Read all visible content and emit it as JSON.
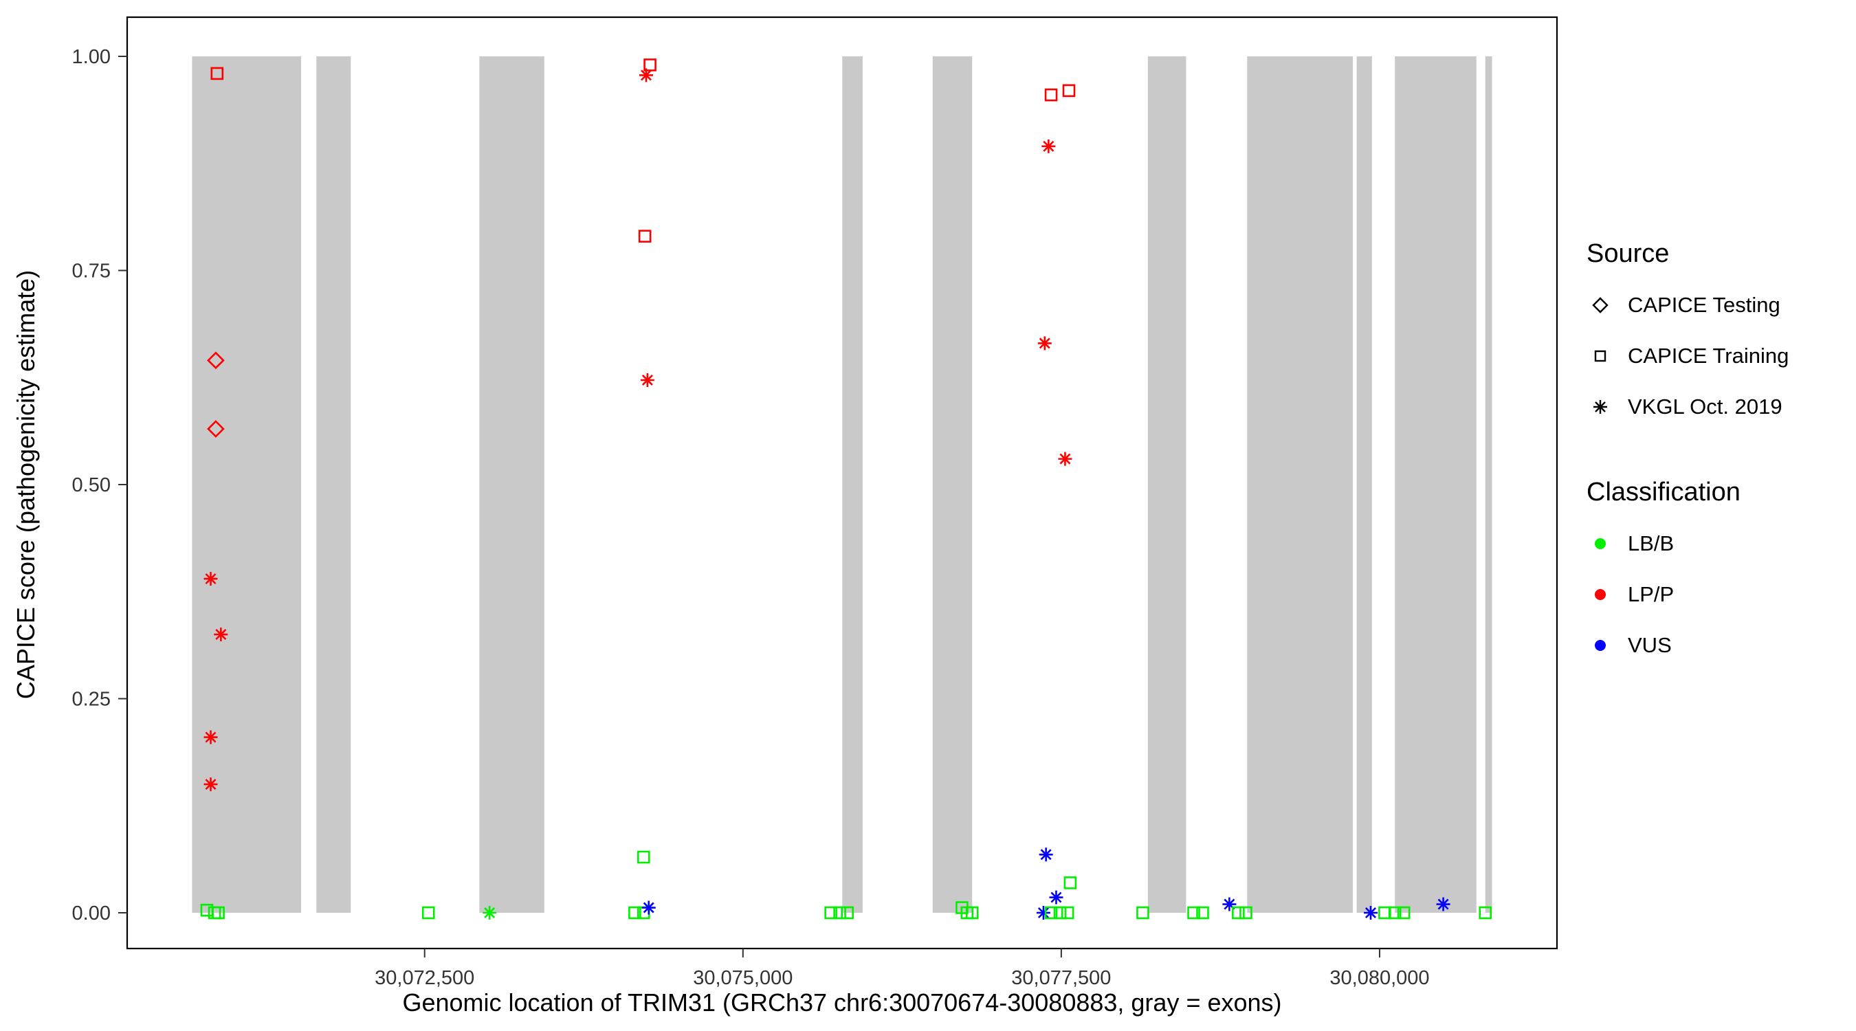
{
  "figure": {
    "background": "#ffffff"
  },
  "chart_data": {
    "type": "scatter",
    "title": "",
    "xlabel": "Genomic location of TRIM31 (GRCh37 chr6:30070674-30080883, gray = exons)",
    "ylabel": "CAPICE score (pathogenicity estimate)",
    "xlim": [
      30070164,
      30081393
    ],
    "ylim": [
      -0.042,
      1.046
    ],
    "grid": "off",
    "panel_border_color": "#000000",
    "tick_label_color": "#333333",
    "exon_color": "#C9C9C9",
    "x_ticks": [
      {
        "value": 30072500,
        "label": "30,072,500"
      },
      {
        "value": 30075000,
        "label": "30,075,000"
      },
      {
        "value": 30077500,
        "label": "30,077,500"
      },
      {
        "value": 30080000,
        "label": "30,080,000"
      }
    ],
    "y_ticks": [
      {
        "value": 0.0,
        "label": "0.00"
      },
      {
        "value": 0.25,
        "label": "0.25"
      },
      {
        "value": 0.5,
        "label": "0.50"
      },
      {
        "value": 0.75,
        "label": "0.75"
      },
      {
        "value": 1.0,
        "label": "1.00"
      }
    ],
    "exons_gray": [
      [
        30070674,
        30071530
      ],
      [
        30071650,
        30071920
      ],
      [
        30072930,
        30073440
      ],
      [
        30075780,
        30075940
      ],
      [
        30076490,
        30076800
      ],
      [
        30078180,
        30078480
      ],
      [
        30078960,
        30079790
      ],
      [
        30079820,
        30079940
      ],
      [
        30080120,
        30080760
      ],
      [
        30080830,
        30080883
      ]
    ],
    "source_shapes": {
      "CAPICE Testing": "diamond",
      "CAPICE Training": "square",
      "VKGL Oct. 2019": "asterisk"
    },
    "class_colors": {
      "LB/B": "#00F000",
      "LP/P": "#FF0000",
      "VUS": "#0000FF"
    },
    "points": [
      {
        "x": 30070870,
        "y": 0.98,
        "source": "CAPICE Training",
        "class": "LP/P"
      },
      {
        "x": 30070860,
        "y": 0.645,
        "source": "CAPICE Testing",
        "class": "LP/P"
      },
      {
        "x": 30070860,
        "y": 0.565,
        "source": "CAPICE Testing",
        "class": "LP/P"
      },
      {
        "x": 30070820,
        "y": 0.39,
        "source": "VKGL Oct. 2019",
        "class": "LP/P"
      },
      {
        "x": 30070900,
        "y": 0.325,
        "source": "VKGL Oct. 2019",
        "class": "LP/P"
      },
      {
        "x": 30070820,
        "y": 0.205,
        "source": "VKGL Oct. 2019",
        "class": "LP/P"
      },
      {
        "x": 30070820,
        "y": 0.15,
        "source": "VKGL Oct. 2019",
        "class": "LP/P"
      },
      {
        "x": 30070790,
        "y": 0.003,
        "source": "CAPICE Training",
        "class": "LB/B"
      },
      {
        "x": 30070850,
        "y": 0.0,
        "source": "CAPICE Training",
        "class": "LB/B"
      },
      {
        "x": 30070880,
        "y": 0.0,
        "source": "CAPICE Training",
        "class": "LB/B"
      },
      {
        "x": 30072530,
        "y": 0.0,
        "source": "CAPICE Training",
        "class": "LB/B"
      },
      {
        "x": 30073010,
        "y": 0.0,
        "source": "VKGL Oct. 2019",
        "class": "LB/B"
      },
      {
        "x": 30074270,
        "y": 0.99,
        "source": "CAPICE Training",
        "class": "LP/P"
      },
      {
        "x": 30074240,
        "y": 0.978,
        "source": "VKGL Oct. 2019",
        "class": "LP/P"
      },
      {
        "x": 30074230,
        "y": 0.79,
        "source": "CAPICE Training",
        "class": "LP/P"
      },
      {
        "x": 30074250,
        "y": 0.622,
        "source": "VKGL Oct. 2019",
        "class": "LP/P"
      },
      {
        "x": 30074220,
        "y": 0.065,
        "source": "CAPICE Training",
        "class": "LB/B"
      },
      {
        "x": 30074150,
        "y": 0.0,
        "source": "CAPICE Training",
        "class": "LB/B"
      },
      {
        "x": 30074220,
        "y": 0.0,
        "source": "CAPICE Training",
        "class": "LB/B"
      },
      {
        "x": 30074260,
        "y": 0.006,
        "source": "VKGL Oct. 2019",
        "class": "VUS"
      },
      {
        "x": 30075690,
        "y": 0.0,
        "source": "CAPICE Training",
        "class": "LB/B"
      },
      {
        "x": 30075760,
        "y": 0.0,
        "source": "CAPICE Training",
        "class": "LB/B"
      },
      {
        "x": 30075820,
        "y": 0.0,
        "source": "CAPICE Training",
        "class": "LB/B"
      },
      {
        "x": 30076720,
        "y": 0.006,
        "source": "CAPICE Training",
        "class": "LB/B"
      },
      {
        "x": 30076760,
        "y": 0.0,
        "source": "CAPICE Training",
        "class": "LB/B"
      },
      {
        "x": 30076800,
        "y": 0.0,
        "source": "CAPICE Training",
        "class": "LB/B"
      },
      {
        "x": 30077420,
        "y": 0.955,
        "source": "CAPICE Training",
        "class": "LP/P"
      },
      {
        "x": 30077560,
        "y": 0.96,
        "source": "CAPICE Training",
        "class": "LP/P"
      },
      {
        "x": 30077400,
        "y": 0.895,
        "source": "VKGL Oct. 2019",
        "class": "LP/P"
      },
      {
        "x": 30077370,
        "y": 0.665,
        "source": "VKGL Oct. 2019",
        "class": "LP/P"
      },
      {
        "x": 30077530,
        "y": 0.53,
        "source": "VKGL Oct. 2019",
        "class": "LP/P"
      },
      {
        "x": 30077380,
        "y": 0.068,
        "source": "VKGL Oct. 2019",
        "class": "VUS"
      },
      {
        "x": 30077460,
        "y": 0.018,
        "source": "VKGL Oct. 2019",
        "class": "VUS"
      },
      {
        "x": 30077570,
        "y": 0.035,
        "source": "CAPICE Training",
        "class": "LB/B"
      },
      {
        "x": 30077360,
        "y": 0.0,
        "source": "VKGL Oct. 2019",
        "class": "VUS"
      },
      {
        "x": 30077420,
        "y": 0.0,
        "source": "CAPICE Training",
        "class": "LB/B"
      },
      {
        "x": 30077490,
        "y": 0.0,
        "source": "CAPICE Training",
        "class": "LB/B"
      },
      {
        "x": 30077550,
        "y": 0.0,
        "source": "CAPICE Training",
        "class": "LB/B"
      },
      {
        "x": 30078140,
        "y": 0.0,
        "source": "CAPICE Training",
        "class": "LB/B"
      },
      {
        "x": 30078540,
        "y": 0.0,
        "source": "CAPICE Training",
        "class": "LB/B"
      },
      {
        "x": 30078610,
        "y": 0.0,
        "source": "CAPICE Training",
        "class": "LB/B"
      },
      {
        "x": 30078820,
        "y": 0.01,
        "source": "VKGL Oct. 2019",
        "class": "VUS"
      },
      {
        "x": 30078890,
        "y": 0.0,
        "source": "CAPICE Training",
        "class": "LB/B"
      },
      {
        "x": 30078950,
        "y": 0.0,
        "source": "CAPICE Training",
        "class": "LB/B"
      },
      {
        "x": 30079930,
        "y": 0.0,
        "source": "VKGL Oct. 2019",
        "class": "VUS"
      },
      {
        "x": 30080040,
        "y": 0.0,
        "source": "CAPICE Training",
        "class": "LB/B"
      },
      {
        "x": 30080120,
        "y": 0.0,
        "source": "CAPICE Training",
        "class": "LB/B"
      },
      {
        "x": 30080190,
        "y": 0.0,
        "source": "CAPICE Training",
        "class": "LB/B"
      },
      {
        "x": 30080500,
        "y": 0.01,
        "source": "VKGL Oct. 2019",
        "class": "VUS"
      },
      {
        "x": 30080830,
        "y": 0.0,
        "source": "CAPICE Training",
        "class": "LB/B"
      }
    ]
  },
  "legend": {
    "source_title": "Source",
    "source_items": [
      {
        "label": "CAPICE Testing",
        "shape": "diamond"
      },
      {
        "label": "CAPICE Training",
        "shape": "square"
      },
      {
        "label": "VKGL Oct. 2019",
        "shape": "asterisk"
      }
    ],
    "class_title": "Classification",
    "class_items": [
      {
        "label": "LB/B",
        "color": "#00F000"
      },
      {
        "label": "LP/P",
        "color": "#FF0000"
      },
      {
        "label": "VUS",
        "color": "#0000FF"
      }
    ]
  }
}
